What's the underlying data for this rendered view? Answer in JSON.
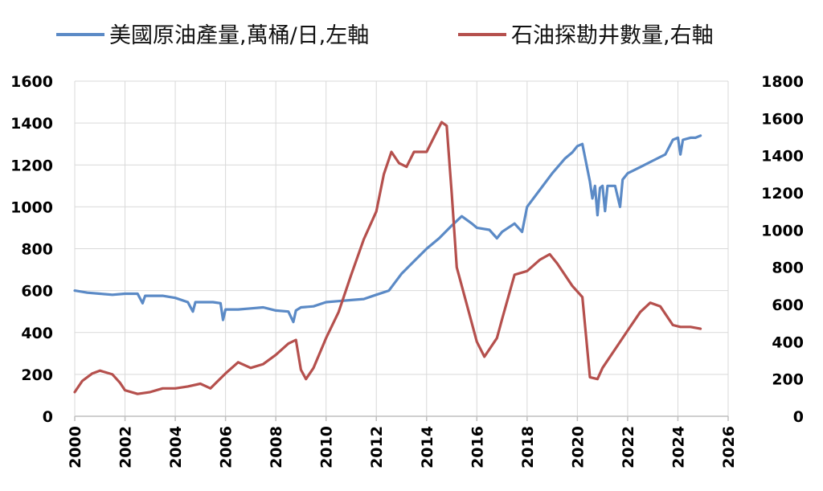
{
  "chart_data": {
    "type": "line",
    "legend_position": "top",
    "grid": true,
    "x_axis": {
      "range": [
        2000,
        2026
      ],
      "ticks": [
        "2000",
        "2002",
        "2004",
        "2006",
        "2008",
        "2010",
        "2012",
        "2014",
        "2016",
        "2018",
        "2020",
        "2022",
        "2024",
        "2026"
      ]
    },
    "y_left": {
      "range": [
        0,
        1600
      ],
      "ticks": [
        "0",
        "200",
        "400",
        "600",
        "800",
        "1000",
        "1200",
        "1400",
        "1600"
      ]
    },
    "y_right": {
      "range": [
        0,
        1800
      ],
      "ticks": [
        "0",
        "200",
        "400",
        "600",
        "800",
        "1000",
        "1200",
        "1400",
        "1600",
        "1800"
      ]
    },
    "series": [
      {
        "name": "美國原油產量,萬桶/日,左軸",
        "axis": "left",
        "color": "#5b8ac6",
        "points": [
          [
            2000,
            600
          ],
          [
            2000.5,
            590
          ],
          [
            2001,
            585
          ],
          [
            2001.5,
            580
          ],
          [
            2002,
            585
          ],
          [
            2002.5,
            585
          ],
          [
            2002.7,
            540
          ],
          [
            2002.8,
            575
          ],
          [
            2003.5,
            575
          ],
          [
            2004,
            565
          ],
          [
            2004.5,
            545
          ],
          [
            2004.7,
            500
          ],
          [
            2004.8,
            545
          ],
          [
            2005.5,
            545
          ],
          [
            2005.8,
            540
          ],
          [
            2005.9,
            460
          ],
          [
            2006,
            510
          ],
          [
            2006.5,
            510
          ],
          [
            2007,
            515
          ],
          [
            2007.5,
            520
          ],
          [
            2008,
            505
          ],
          [
            2008.5,
            500
          ],
          [
            2008.7,
            450
          ],
          [
            2008.8,
            505
          ],
          [
            2009,
            520
          ],
          [
            2009.5,
            525
          ],
          [
            2010,
            545
          ],
          [
            2010.5,
            550
          ],
          [
            2011,
            555
          ],
          [
            2011.5,
            560
          ],
          [
            2012,
            580
          ],
          [
            2012.5,
            600
          ],
          [
            2013,
            680
          ],
          [
            2013.5,
            740
          ],
          [
            2014,
            800
          ],
          [
            2014.5,
            850
          ],
          [
            2015,
            910
          ],
          [
            2015.4,
            955
          ],
          [
            2015.8,
            920
          ],
          [
            2016,
            900
          ],
          [
            2016.5,
            890
          ],
          [
            2016.8,
            850
          ],
          [
            2017,
            880
          ],
          [
            2017.5,
            920
          ],
          [
            2017.8,
            880
          ],
          [
            2018,
            1000
          ],
          [
            2018.5,
            1080
          ],
          [
            2019,
            1160
          ],
          [
            2019.5,
            1230
          ],
          [
            2019.8,
            1260
          ],
          [
            2020,
            1290
          ],
          [
            2020.2,
            1300
          ],
          [
            2020.5,
            1120
          ],
          [
            2020.6,
            1040
          ],
          [
            2020.7,
            1100
          ],
          [
            2020.8,
            960
          ],
          [
            2020.9,
            1090
          ],
          [
            2021,
            1100
          ],
          [
            2021.1,
            980
          ],
          [
            2021.2,
            1100
          ],
          [
            2021.5,
            1100
          ],
          [
            2021.7,
            1000
          ],
          [
            2021.8,
            1130
          ],
          [
            2022,
            1160
          ],
          [
            2022.5,
            1190
          ],
          [
            2023,
            1220
          ],
          [
            2023.5,
            1250
          ],
          [
            2023.8,
            1320
          ],
          [
            2024,
            1330
          ],
          [
            2024.1,
            1250
          ],
          [
            2024.2,
            1320
          ],
          [
            2024.5,
            1330
          ],
          [
            2024.7,
            1330
          ],
          [
            2024.9,
            1340
          ]
        ]
      },
      {
        "name": "石油探勘井數量,右軸",
        "axis": "right",
        "color": "#b5504d",
        "points": [
          [
            2000,
            130
          ],
          [
            2000.3,
            190
          ],
          [
            2000.7,
            230
          ],
          [
            2001,
            245
          ],
          [
            2001.5,
            225
          ],
          [
            2001.8,
            180
          ],
          [
            2002,
            140
          ],
          [
            2002.5,
            120
          ],
          [
            2003,
            130
          ],
          [
            2003.5,
            150
          ],
          [
            2004,
            150
          ],
          [
            2004.5,
            160
          ],
          [
            2005,
            175
          ],
          [
            2005.4,
            150
          ],
          [
            2005.7,
            190
          ],
          [
            2006,
            230
          ],
          [
            2006.5,
            290
          ],
          [
            2007,
            260
          ],
          [
            2007.5,
            280
          ],
          [
            2008,
            330
          ],
          [
            2008.5,
            390
          ],
          [
            2008.8,
            410
          ],
          [
            2009,
            250
          ],
          [
            2009.2,
            200
          ],
          [
            2009.5,
            260
          ],
          [
            2010,
            420
          ],
          [
            2010.5,
            560
          ],
          [
            2011,
            760
          ],
          [
            2011.5,
            950
          ],
          [
            2012,
            1100
          ],
          [
            2012.3,
            1300
          ],
          [
            2012.6,
            1420
          ],
          [
            2012.9,
            1360
          ],
          [
            2013.2,
            1340
          ],
          [
            2013.5,
            1420
          ],
          [
            2014,
            1420
          ],
          [
            2014.3,
            1500
          ],
          [
            2014.6,
            1580
          ],
          [
            2014.8,
            1560
          ],
          [
            2015,
            1200
          ],
          [
            2015.2,
            800
          ],
          [
            2015.5,
            650
          ],
          [
            2016,
            400
          ],
          [
            2016.3,
            320
          ],
          [
            2016.8,
            420
          ],
          [
            2017,
            520
          ],
          [
            2017.5,
            760
          ],
          [
            2018,
            780
          ],
          [
            2018.5,
            840
          ],
          [
            2018.9,
            870
          ],
          [
            2019.2,
            820
          ],
          [
            2019.8,
            700
          ],
          [
            2020.2,
            640
          ],
          [
            2020.5,
            210
          ],
          [
            2020.8,
            200
          ],
          [
            2021,
            260
          ],
          [
            2021.5,
            360
          ],
          [
            2022,
            460
          ],
          [
            2022.5,
            560
          ],
          [
            2022.9,
            610
          ],
          [
            2023.3,
            590
          ],
          [
            2023.8,
            490
          ],
          [
            2024.1,
            480
          ],
          [
            2024.5,
            480
          ],
          [
            2024.9,
            470
          ]
        ]
      }
    ]
  }
}
